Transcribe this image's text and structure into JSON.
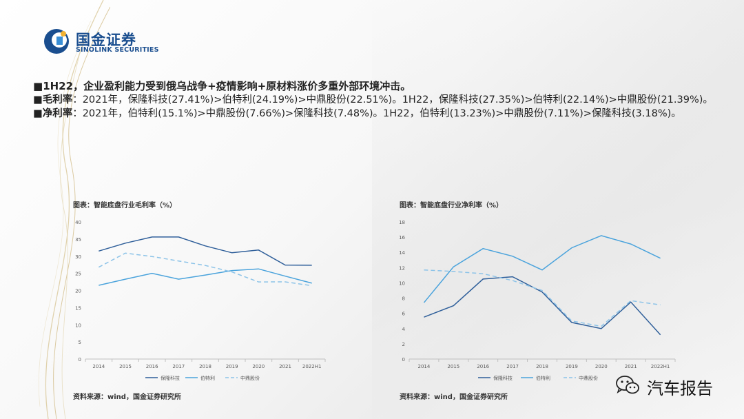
{
  "header": {
    "logo_cn": "国金证券",
    "logo_en": "SINOLINK SECURITIES"
  },
  "bullets": [
    {
      "marker": "■",
      "label": "1H22",
      "text": "，企业盈利能力受到俄乌战争+疫情影响+原材料涨价多重外部环境冲击。"
    },
    {
      "marker": "■",
      "label": "毛利率",
      "text": "：2021年，保隆科技(27.41%)>伯特利(24.19%)>中鼎股份(22.51%)。1H22，保隆科技(27.35%)>伯特利(22.14%)>中鼎股份(21.39%)。"
    },
    {
      "marker": "■",
      "label": "净利率",
      "text": "：2021年，伯特利(15.1%)>中鼎股份(7.66%)>保隆科技(7.48%)。1H22，伯特利(13.23%)>中鼎股份(7.11%)>保隆科技(3.18%)。"
    }
  ],
  "colors": {
    "baolong": "#2f5f9a",
    "bertli": "#4aa3dc",
    "zhongding": "#8cc3e8",
    "axis": "#bfbfbf",
    "tick_text": "#595959"
  },
  "chart_data": [
    {
      "type": "line",
      "title": "图表：智能底盘行业毛利率（%）",
      "source": "资料来源：wind，国金证券研究所",
      "categories": [
        "2014",
        "2015",
        "2016",
        "2017",
        "2018",
        "2019",
        "2020",
        "2021",
        "2022H1"
      ],
      "ylim": [
        0,
        40
      ],
      "yticks": [
        0,
        5,
        10,
        15,
        20,
        25,
        30,
        35,
        40
      ],
      "legend": "bottom",
      "grid": false,
      "series": [
        {
          "name": "保隆科技",
          "style": "solid",
          "color": "#2f5f9a",
          "values": [
            31.5,
            33.8,
            35.6,
            35.6,
            33.0,
            31.0,
            31.8,
            27.41,
            27.35
          ]
        },
        {
          "name": "伯特利",
          "style": "solid",
          "color": "#4aa3dc",
          "values": [
            21.5,
            23.3,
            25.0,
            23.3,
            24.5,
            25.8,
            26.3,
            24.19,
            22.14
          ]
        },
        {
          "name": "中鼎股份",
          "style": "dashed",
          "color": "#8cc3e8",
          "values": [
            26.8,
            30.9,
            29.9,
            28.6,
            27.3,
            25.4,
            22.5,
            22.51,
            21.39
          ]
        }
      ]
    },
    {
      "type": "line",
      "title": "图表：智能底盘行业净利率（%）",
      "source": "资料来源：wind，国金证券研究所",
      "categories": [
        "2014",
        "2015",
        "2016",
        "2017",
        "2018",
        "2019",
        "2020",
        "2021",
        "2022H1"
      ],
      "ylim": [
        0,
        18
      ],
      "yticks": [
        0,
        2,
        4,
        6,
        8,
        10,
        12,
        14,
        16,
        18
      ],
      "legend": "bottom",
      "grid": false,
      "series": [
        {
          "name": "保隆科技",
          "style": "solid",
          "color": "#2f5f9a",
          "values": [
            5.5,
            7.0,
            10.5,
            10.8,
            8.8,
            4.8,
            4.0,
            7.48,
            3.18
          ]
        },
        {
          "name": "伯特利",
          "style": "solid",
          "color": "#4aa3dc",
          "values": [
            7.4,
            12.1,
            14.5,
            13.5,
            11.7,
            14.6,
            16.2,
            15.1,
            13.23
          ]
        },
        {
          "name": "中鼎股份",
          "style": "dashed",
          "color": "#8cc3e8",
          "values": [
            11.7,
            11.5,
            11.2,
            10.3,
            9.0,
            5.0,
            4.3,
            7.66,
            7.11
          ]
        }
      ]
    }
  ],
  "watermark": {
    "text": "汽车报告",
    "icon": "wechat-icon"
  }
}
